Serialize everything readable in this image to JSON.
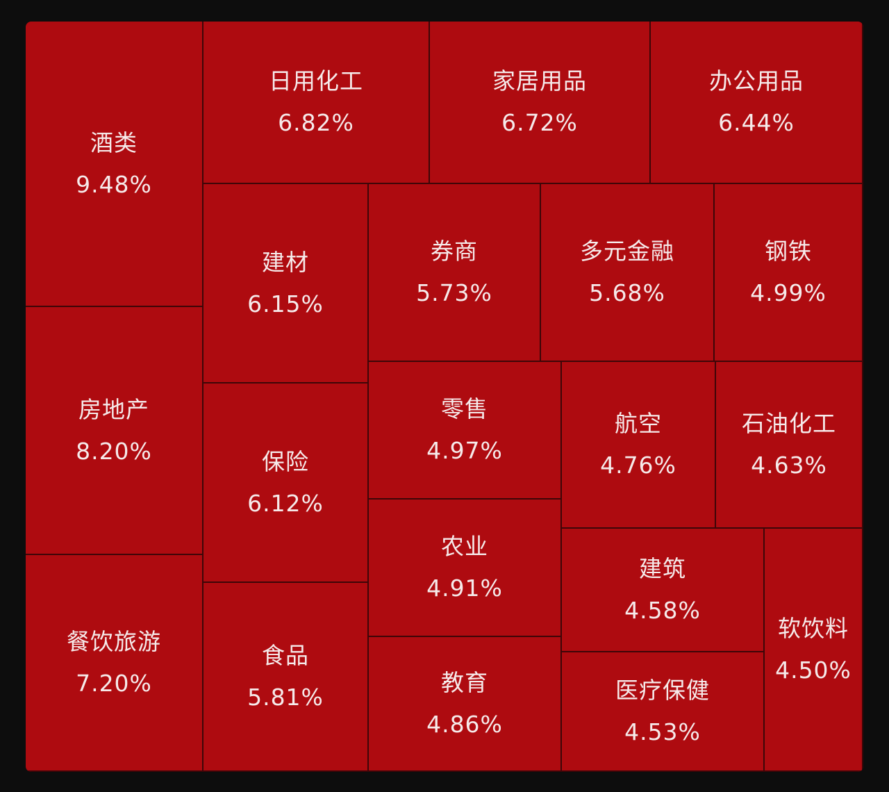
{
  "chart_data": {
    "type": "treemap",
    "unit": "%",
    "items": [
      {
        "name": "酒类",
        "value": 9.48,
        "label": "9.48%"
      },
      {
        "name": "房地产",
        "value": 8.2,
        "label": "8.20%"
      },
      {
        "name": "餐饮旅游",
        "value": 7.2,
        "label": "7.20%"
      },
      {
        "name": "日用化工",
        "value": 6.82,
        "label": "6.82%"
      },
      {
        "name": "家居用品",
        "value": 6.72,
        "label": "6.72%"
      },
      {
        "name": "办公用品",
        "value": 6.44,
        "label": "6.44%"
      },
      {
        "name": "建材",
        "value": 6.15,
        "label": "6.15%"
      },
      {
        "name": "保险",
        "value": 6.12,
        "label": "6.12%"
      },
      {
        "name": "食品",
        "value": 5.81,
        "label": "5.81%"
      },
      {
        "name": "券商",
        "value": 5.73,
        "label": "5.73%"
      },
      {
        "name": "多元金融",
        "value": 5.68,
        "label": "5.68%"
      },
      {
        "name": "钢铁",
        "value": 4.99,
        "label": "4.99%"
      },
      {
        "name": "零售",
        "value": 4.97,
        "label": "4.97%"
      },
      {
        "name": "农业",
        "value": 4.91,
        "label": "4.91%"
      },
      {
        "name": "教育",
        "value": 4.86,
        "label": "4.86%"
      },
      {
        "name": "航空",
        "value": 4.76,
        "label": "4.76%"
      },
      {
        "name": "石油化工",
        "value": 4.63,
        "label": "4.63%"
      },
      {
        "name": "建筑",
        "value": 4.58,
        "label": "4.58%"
      },
      {
        "name": "医疗保健",
        "value": 4.53,
        "label": "4.53%"
      },
      {
        "name": "软饮料",
        "value": 4.5,
        "label": "4.50%"
      }
    ],
    "colors": {
      "tile": "#ae0b10",
      "border": "#3d0608",
      "text": "#f6eaea",
      "background": "#0d0d0d"
    }
  }
}
